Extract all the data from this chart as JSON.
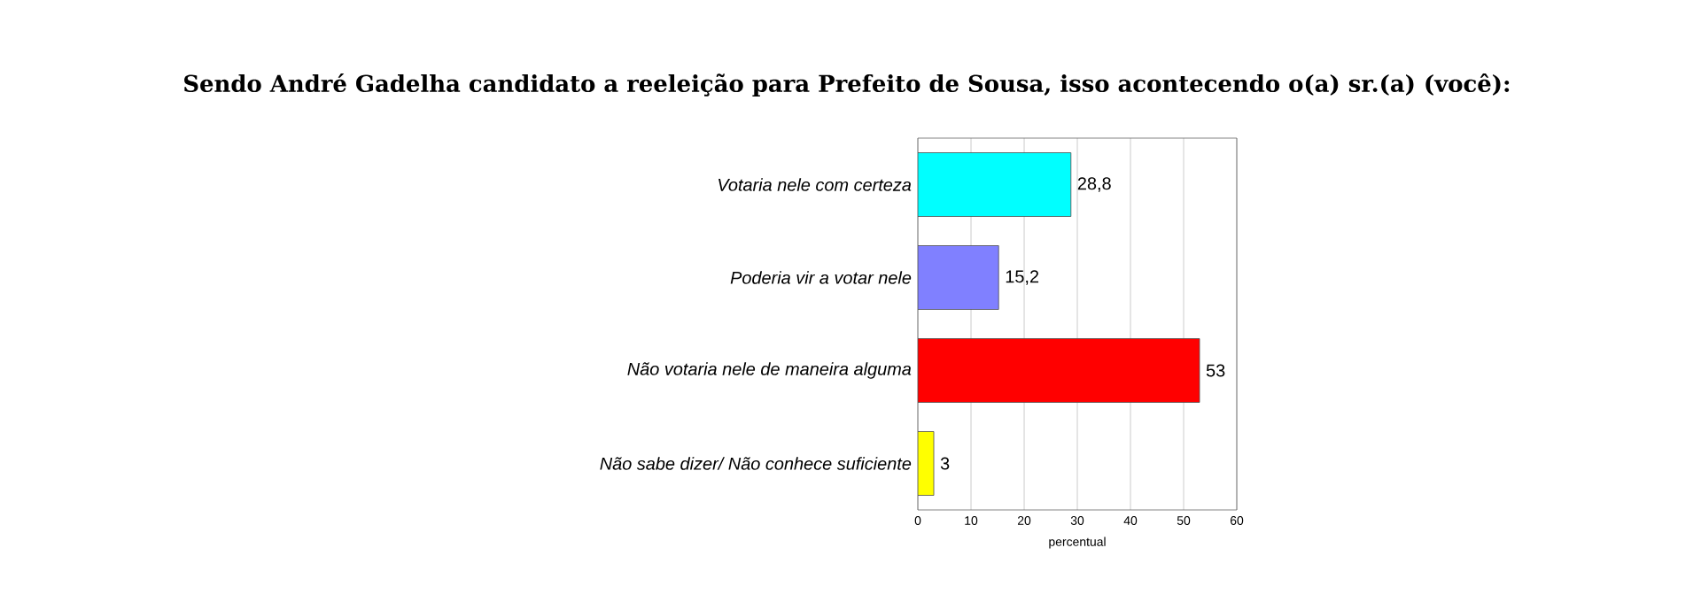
{
  "chart_data": {
    "type": "bar",
    "orientation": "horizontal",
    "title": "Sendo André Gadelha candidato a reeleição para Prefeito de Sousa, isso acontecendo o(a) sr.(a) (você):",
    "categories": [
      "Votaria nele com certeza",
      "Poderia vir a votar nele",
      "Não votaria nele de maneira alguma",
      "Não sabe dizer/ Não conhece suficiente"
    ],
    "values": [
      28.8,
      15.2,
      53,
      3
    ],
    "colors": [
      "#00ffff",
      "#8080ff",
      "#ff0000",
      "#ffff00"
    ],
    "value_labels": [
      "28,8",
      "15,2",
      "53",
      "3"
    ],
    "xlabel": "percentual",
    "xlim": [
      0,
      60
    ],
    "xticks": [
      0,
      10,
      20,
      30,
      40,
      50,
      60
    ],
    "grid": "x"
  }
}
